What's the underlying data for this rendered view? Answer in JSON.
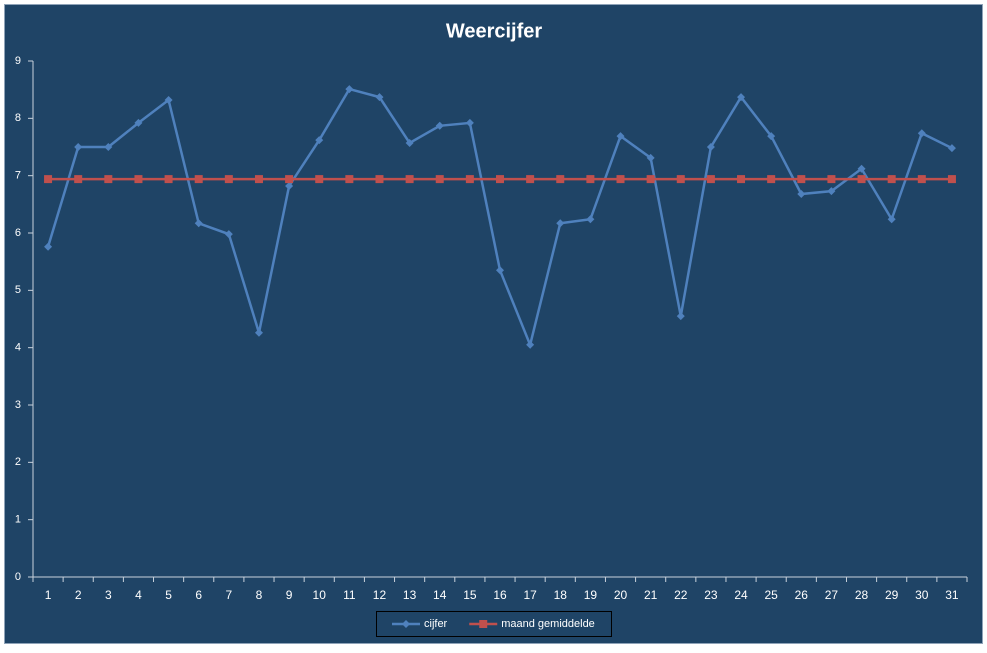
{
  "chart_data": {
    "type": "line",
    "title": "Weercijfer",
    "categories": [
      "1",
      "2",
      "3",
      "4",
      "5",
      "6",
      "7",
      "8",
      "9",
      "10",
      "11",
      "12",
      "13",
      "14",
      "15",
      "16",
      "17",
      "18",
      "19",
      "20",
      "21",
      "22",
      "23",
      "24",
      "25",
      "26",
      "27",
      "28",
      "29",
      "30",
      "31"
    ],
    "series": [
      {
        "name": "cijfer",
        "color": "#4f81bd",
        "marker": "diamond",
        "values": [
          5.76,
          7.5,
          7.5,
          7.92,
          8.32,
          6.17,
          5.98,
          4.26,
          6.82,
          7.62,
          8.51,
          8.37,
          7.57,
          7.87,
          7.92,
          5.35,
          4.05,
          6.17,
          6.24,
          7.69,
          7.31,
          4.55,
          7.5,
          8.37,
          7.69,
          6.68,
          6.73,
          7.12,
          6.24,
          7.74,
          7.48
        ]
      },
      {
        "name": "maand gemiddelde",
        "color": "#c0504d",
        "marker": "square",
        "values": [
          6.94,
          6.94,
          6.94,
          6.94,
          6.94,
          6.94,
          6.94,
          6.94,
          6.94,
          6.94,
          6.94,
          6.94,
          6.94,
          6.94,
          6.94,
          6.94,
          6.94,
          6.94,
          6.94,
          6.94,
          6.94,
          6.94,
          6.94,
          6.94,
          6.94,
          6.94,
          6.94,
          6.94,
          6.94,
          6.94,
          6.94
        ]
      }
    ],
    "ylim": [
      0,
      9
    ],
    "yticks": [
      0,
      1,
      2,
      3,
      4,
      5,
      6,
      7,
      8,
      9
    ],
    "grid": false,
    "legend": "bottom"
  }
}
